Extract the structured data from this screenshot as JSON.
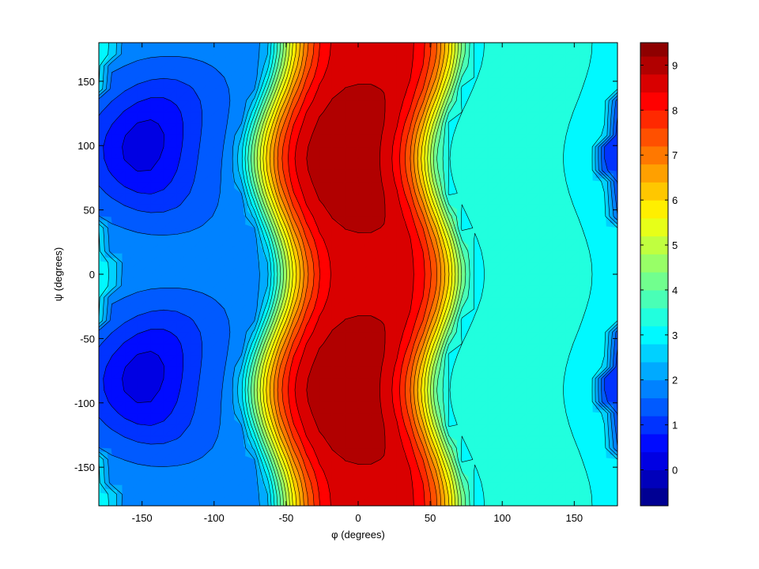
{
  "chart_data": {
    "type": "contour",
    "xlabel": "φ (degrees)",
    "ylabel": "ψ (degrees)",
    "xlim": [
      -180,
      180
    ],
    "ylim": [
      -180,
      180
    ],
    "x_ticks": [
      -150,
      -100,
      -50,
      0,
      50,
      100,
      150
    ],
    "y_ticks": [
      -150,
      -100,
      -50,
      0,
      50,
      100,
      150
    ],
    "colormap": "jet",
    "color_range": [
      -0.8,
      9.5
    ],
    "colorbar_ticks": [
      0,
      1,
      2,
      3,
      4,
      5,
      6,
      7,
      8,
      9
    ],
    "level_step": 0.4,
    "contour_line_color": "#000000",
    "background_color": "#ffffff",
    "grid": false
  }
}
